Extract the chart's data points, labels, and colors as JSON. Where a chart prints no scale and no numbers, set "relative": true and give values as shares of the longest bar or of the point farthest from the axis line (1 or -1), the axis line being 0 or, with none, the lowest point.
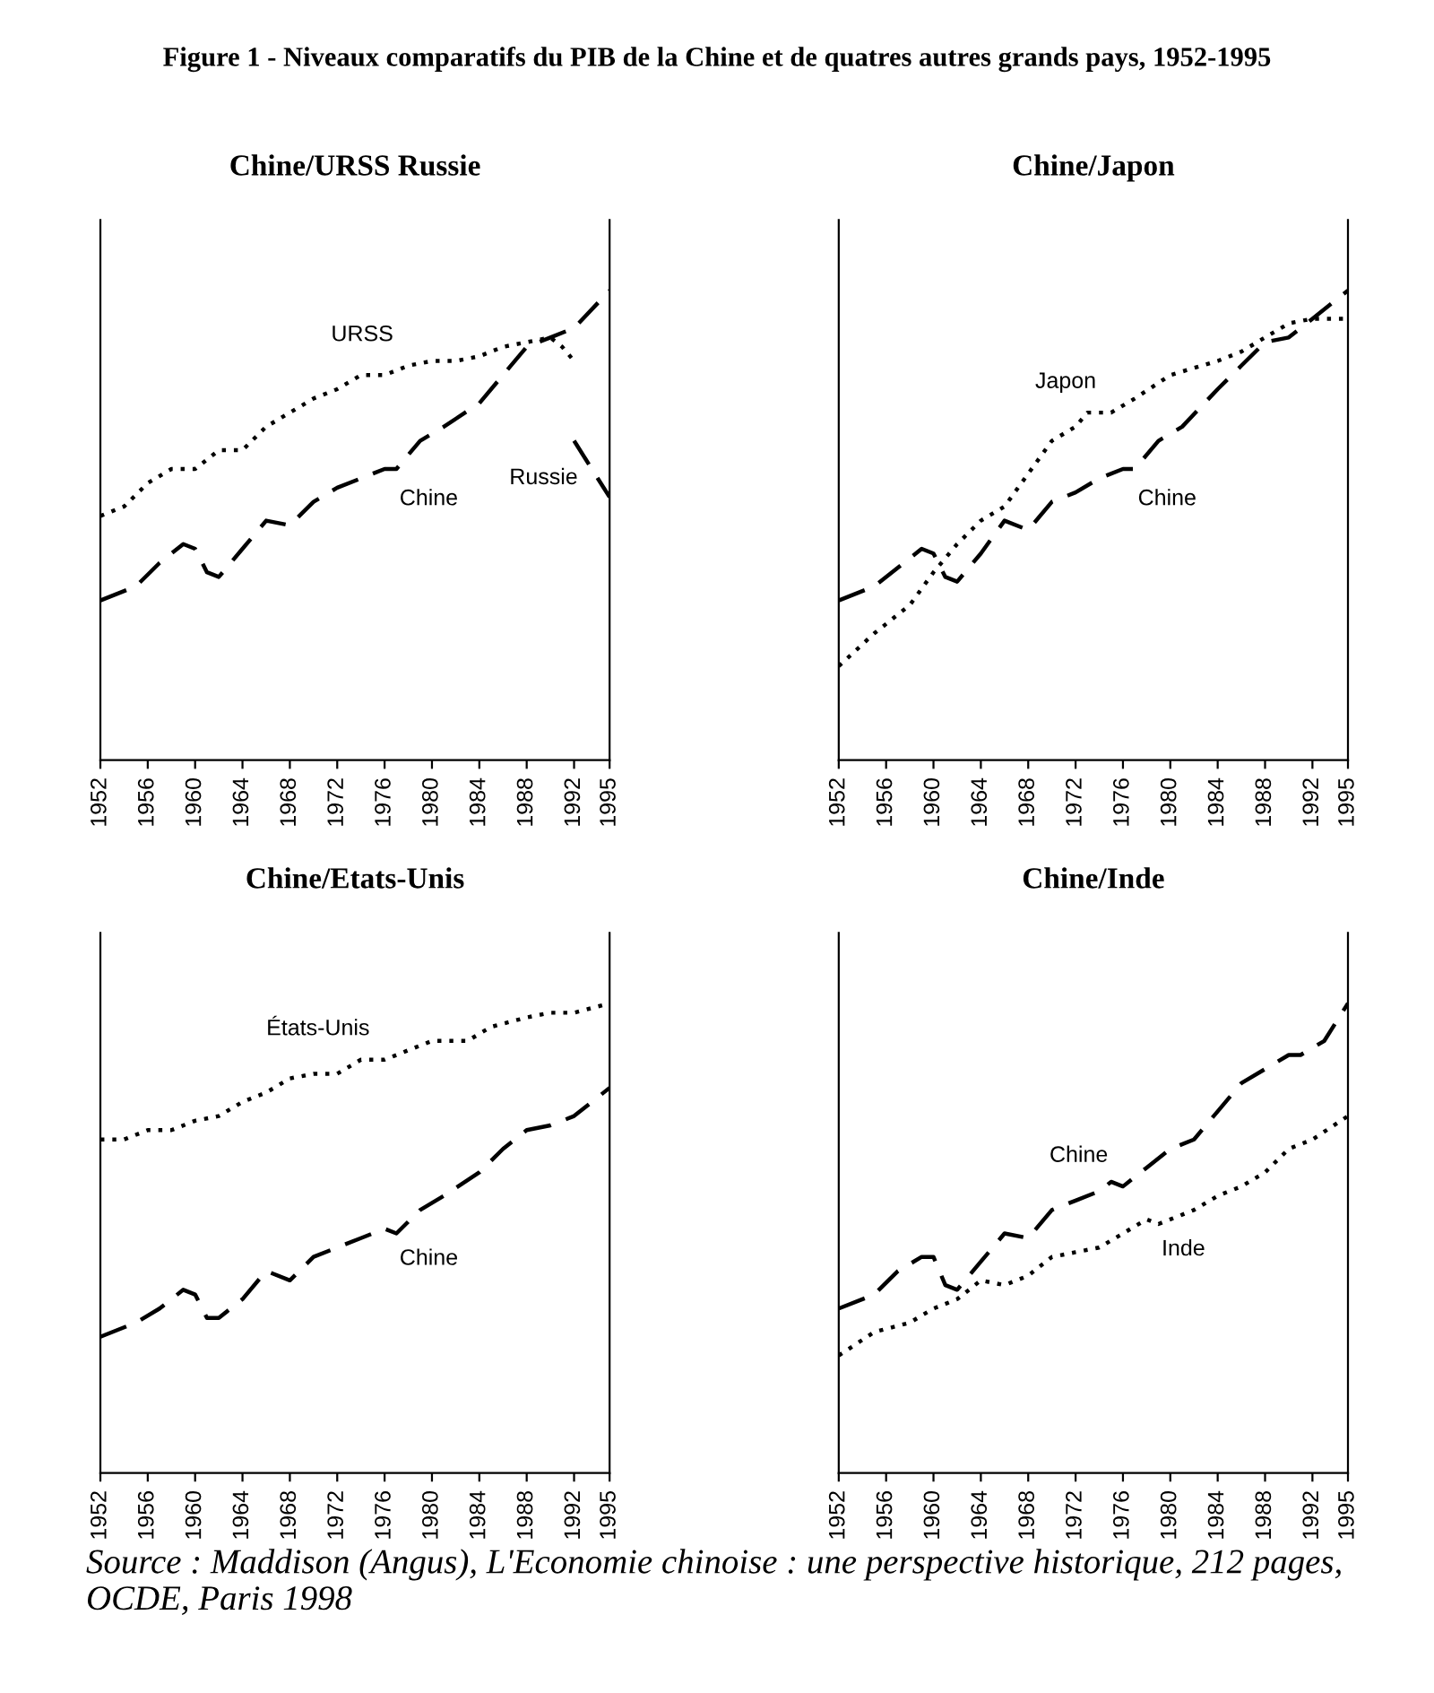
{
  "chart_data": [
    {
      "type": "line",
      "title": "Chine/URSS Russie",
      "relative": true,
      "xlim": [
        1952,
        1995
      ],
      "xticks": [
        1952,
        1956,
        1960,
        1964,
        1968,
        1972,
        1976,
        1980,
        1984,
        1988,
        1992,
        1995
      ],
      "grid": false,
      "legend": false,
      "marker": "none",
      "annotations": [
        "Figure 1 - Niveaux comparatifs du PIB de la Chine et de quatres autres grands pays, 1952-1995"
      ],
      "series": [
        {
          "name": "URSS",
          "color": "#000000",
          "line_style": "dotted",
          "x": [
            1952,
            1954,
            1956,
            1958,
            1960,
            1962,
            1964,
            1966,
            1968,
            1970,
            1972,
            1974,
            1976,
            1978,
            1980,
            1982,
            1984,
            1986,
            1988,
            1990,
            1991,
            1992
          ],
          "values": [
            0.52,
            0.54,
            0.59,
            0.62,
            0.62,
            0.66,
            0.66,
            0.71,
            0.74,
            0.77,
            0.79,
            0.82,
            0.82,
            0.84,
            0.85,
            0.85,
            0.86,
            0.88,
            0.89,
            0.9,
            0.88,
            0.85
          ]
        },
        {
          "name": "Chine",
          "color": "#000000",
          "line_style": "dashed",
          "x": [
            1952,
            1955,
            1957,
            1959,
            1960,
            1961,
            1962,
            1964,
            1966,
            1968,
            1970,
            1972,
            1974,
            1976,
            1977,
            1979,
            1981,
            1984,
            1986,
            1988,
            1990,
            1992,
            1995
          ],
          "values": [
            0.34,
            0.37,
            0.42,
            0.46,
            0.45,
            0.4,
            0.39,
            0.45,
            0.51,
            0.5,
            0.55,
            0.58,
            0.6,
            0.62,
            0.62,
            0.68,
            0.71,
            0.76,
            0.82,
            0.88,
            0.9,
            0.92,
            1.0
          ]
        },
        {
          "name": "Russie",
          "color": "#000000",
          "line_style": "dashed",
          "x": [
            1992,
            1993,
            1994,
            1995
          ],
          "values": [
            0.68,
            0.64,
            0.6,
            0.56
          ]
        }
      ]
    },
    {
      "type": "line",
      "title": "Chine/Japon",
      "relative": true,
      "xlim": [
        1952,
        1995
      ],
      "xticks": [
        1952,
        1956,
        1960,
        1964,
        1968,
        1972,
        1976,
        1980,
        1984,
        1988,
        1992,
        1995
      ],
      "grid": false,
      "legend": false,
      "marker": "none",
      "series": [
        {
          "name": "Japon",
          "color": "#000000",
          "line_style": "dotted",
          "x": [
            1952,
            1955,
            1958,
            1960,
            1962,
            1964,
            1966,
            1968,
            1970,
            1972,
            1973,
            1975,
            1977,
            1980,
            1984,
            1986,
            1988,
            1990,
            1992,
            1995
          ],
          "values": [
            0.2,
            0.27,
            0.33,
            0.4,
            0.46,
            0.51,
            0.54,
            0.61,
            0.68,
            0.71,
            0.74,
            0.74,
            0.77,
            0.82,
            0.85,
            0.87,
            0.9,
            0.93,
            0.94,
            0.94
          ]
        },
        {
          "name": "Chine",
          "color": "#000000",
          "line_style": "dashed",
          "x": [
            1952,
            1955,
            1957,
            1959,
            1960,
            1961,
            1962,
            1964,
            1966,
            1968,
            1970,
            1972,
            1974,
            1976,
            1977,
            1979,
            1981,
            1984,
            1986,
            1988,
            1990,
            1992,
            1995
          ],
          "values": [
            0.34,
            0.37,
            0.41,
            0.45,
            0.44,
            0.39,
            0.38,
            0.44,
            0.51,
            0.49,
            0.55,
            0.57,
            0.6,
            0.62,
            0.62,
            0.68,
            0.71,
            0.79,
            0.84,
            0.89,
            0.9,
            0.94,
            1.0
          ]
        }
      ]
    },
    {
      "type": "line",
      "title": "Chine/Etats-Unis",
      "relative": true,
      "xlim": [
        1952,
        1995
      ],
      "xticks": [
        1952,
        1956,
        1960,
        1964,
        1968,
        1972,
        1976,
        1980,
        1984,
        1988,
        1992,
        1995
      ],
      "grid": false,
      "legend": false,
      "marker": "none",
      "series": [
        {
          "name": "États-Unis",
          "color": "#000000",
          "line_style": "dotted",
          "x": [
            1952,
            1954,
            1956,
            1958,
            1960,
            1962,
            1964,
            1966,
            1968,
            1970,
            1972,
            1974,
            1976,
            1978,
            1980,
            1983,
            1985,
            1988,
            1990,
            1992,
            1995
          ],
          "values": [
            0.71,
            0.71,
            0.73,
            0.73,
            0.75,
            0.76,
            0.79,
            0.81,
            0.84,
            0.85,
            0.85,
            0.88,
            0.88,
            0.9,
            0.92,
            0.92,
            0.95,
            0.97,
            0.98,
            0.98,
            1.0
          ]
        },
        {
          "name": "Chine",
          "color": "#000000",
          "line_style": "dashed",
          "x": [
            1952,
            1955,
            1957,
            1959,
            1960,
            1961,
            1962,
            1964,
            1966,
            1968,
            1970,
            1972,
            1974,
            1976,
            1977,
            1979,
            1981,
            1984,
            1986,
            1988,
            1990,
            1992,
            1995
          ],
          "values": [
            0.29,
            0.32,
            0.35,
            0.39,
            0.38,
            0.33,
            0.33,
            0.37,
            0.43,
            0.41,
            0.46,
            0.48,
            0.5,
            0.52,
            0.51,
            0.56,
            0.59,
            0.64,
            0.69,
            0.73,
            0.74,
            0.76,
            0.82
          ]
        }
      ]
    },
    {
      "type": "line",
      "title": "Chine/Inde",
      "relative": true,
      "xlim": [
        1952,
        1995
      ],
      "xticks": [
        1952,
        1956,
        1960,
        1964,
        1968,
        1972,
        1976,
        1980,
        1984,
        1988,
        1992,
        1995
      ],
      "grid": false,
      "legend": false,
      "marker": "none",
      "series": [
        {
          "name": "Chine",
          "color": "#000000",
          "line_style": "dashed",
          "x": [
            1952,
            1955,
            1957,
            1959,
            1960,
            1961,
            1962,
            1964,
            1966,
            1968,
            1970,
            1972,
            1974,
            1975,
            1976,
            1978,
            1980,
            1982,
            1984,
            1986,
            1988,
            1990,
            1991,
            1993,
            1995
          ],
          "values": [
            0.35,
            0.38,
            0.43,
            0.46,
            0.46,
            0.4,
            0.39,
            0.45,
            0.51,
            0.5,
            0.56,
            0.58,
            0.6,
            0.62,
            0.61,
            0.65,
            0.69,
            0.71,
            0.77,
            0.83,
            0.86,
            0.89,
            0.89,
            0.92,
            1.0
          ]
        },
        {
          "name": "Inde",
          "color": "#000000",
          "line_style": "dotted",
          "x": [
            1952,
            1955,
            1958,
            1960,
            1962,
            1964,
            1966,
            1968,
            1970,
            1972,
            1974,
            1976,
            1978,
            1979,
            1982,
            1984,
            1986,
            1988,
            1990,
            1992,
            1995
          ],
          "values": [
            0.25,
            0.3,
            0.32,
            0.35,
            0.37,
            0.41,
            0.4,
            0.42,
            0.46,
            0.47,
            0.48,
            0.51,
            0.54,
            0.53,
            0.56,
            0.59,
            0.61,
            0.64,
            0.69,
            0.71,
            0.76
          ]
        }
      ],
      "annotations": [
        "Source : Maddison (Angus), L'Economie chinoise : une perspective historique, 212 pages, OCDE, Paris 1998"
      ]
    }
  ]
}
